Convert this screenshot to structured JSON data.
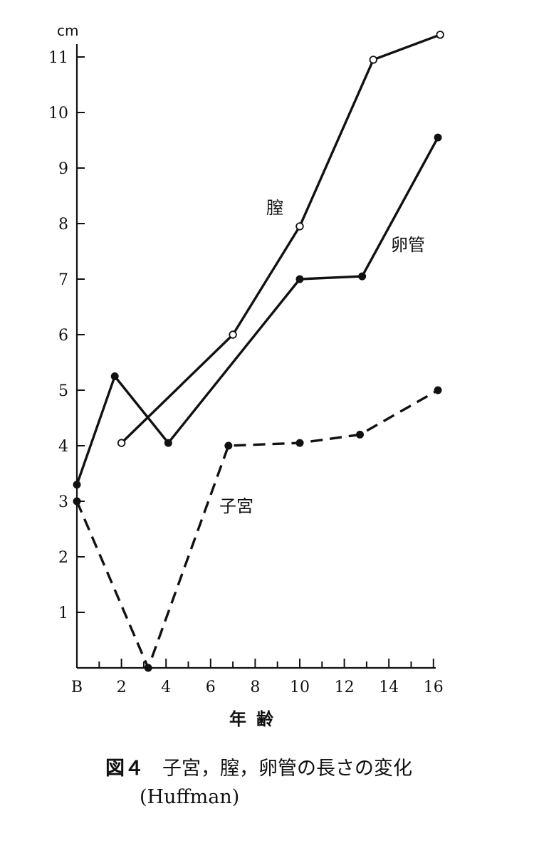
{
  "chart_data": {
    "type": "line",
    "title": "",
    "y_unit": "cm",
    "xlabel": "年齢",
    "ylabel": "",
    "x_ticks": [
      {
        "value": 0,
        "label": "B"
      },
      {
        "value": 2,
        "label": "2"
      },
      {
        "value": 4,
        "label": "4"
      },
      {
        "value": 6,
        "label": "6"
      },
      {
        "value": 8,
        "label": "8"
      },
      {
        "value": 10,
        "label": "10"
      },
      {
        "value": 12,
        "label": "12"
      },
      {
        "value": 14,
        "label": "14"
      },
      {
        "value": 16,
        "label": "16"
      }
    ],
    "y_ticks": [
      1,
      2,
      3,
      4,
      5,
      6,
      7,
      8,
      9,
      10,
      11
    ],
    "xlim": [
      0,
      16
    ],
    "ylim": [
      0,
      11.4
    ],
    "grid": false,
    "series": [
      {
        "name": "膣",
        "line_style": "solid",
        "marker": "open-circle",
        "points": [
          {
            "x": 2,
            "y": 4.05
          },
          {
            "x": 7,
            "y": 6.0
          },
          {
            "x": 10,
            "y": 7.95
          },
          {
            "x": 13.3,
            "y": 10.95
          },
          {
            "x": 16.3,
            "y": 11.4
          }
        ]
      },
      {
        "name": "卵管",
        "line_style": "solid",
        "marker": "filled-circle",
        "points": [
          {
            "x": 0,
            "y": 3.3
          },
          {
            "x": 1.7,
            "y": 5.25
          },
          {
            "x": 4.1,
            "y": 4.05
          },
          {
            "x": 10,
            "y": 7.0
          },
          {
            "x": 12.8,
            "y": 7.05
          },
          {
            "x": 16.2,
            "y": 9.55
          }
        ]
      },
      {
        "name": "子宮",
        "line_style": "dashed",
        "marker": "filled-circle",
        "points": [
          {
            "x": 0,
            "y": 3.0
          },
          {
            "x": 3.2,
            "y": 0.0
          },
          {
            "x": 6.8,
            "y": 4.0
          },
          {
            "x": 10,
            "y": 4.05
          },
          {
            "x": 12.7,
            "y": 4.2
          },
          {
            "x": 16.2,
            "y": 5.0
          }
        ]
      }
    ]
  },
  "caption": {
    "figure_number": "図４",
    "text": "子宮，膣，卵管の長さの変化",
    "source": "(Huffman)"
  }
}
